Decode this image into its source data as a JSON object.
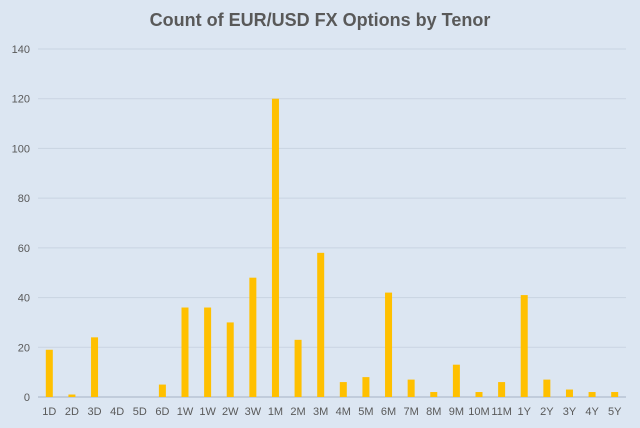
{
  "chart_data": {
    "type": "bar",
    "title": "Count of EUR/USD FX Options by Tenor",
    "xlabel": "",
    "ylabel": "",
    "categories": [
      "1D",
      "2D",
      "3D",
      "4D",
      "5D",
      "6D",
      "1W",
      "1W",
      "2W",
      "3W",
      "1M",
      "2M",
      "3M",
      "4M",
      "5M",
      "6M",
      "7M",
      "8M",
      "9M",
      "10M",
      "11M",
      "1Y",
      "2Y",
      "3Y",
      "4Y",
      "5Y"
    ],
    "values": [
      19,
      1,
      24,
      0,
      0,
      5,
      36,
      36,
      30,
      48,
      120,
      23,
      58,
      6,
      8,
      42,
      7,
      2,
      13,
      2,
      6,
      41,
      7,
      3,
      2,
      2
    ],
    "ylim": [
      0,
      140
    ],
    "yticks": [
      0,
      20,
      40,
      60,
      80,
      100,
      120,
      140
    ],
    "grid": true,
    "legend": "none",
    "colors": {
      "bar": "#ffc000",
      "grid": "#c9d4e1",
      "text": "#595959",
      "background": "#dce6f2"
    }
  }
}
